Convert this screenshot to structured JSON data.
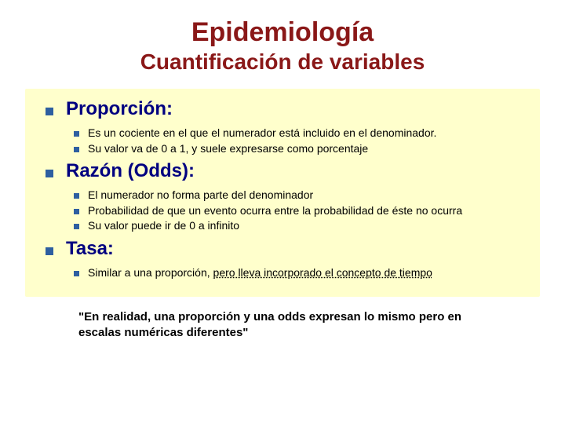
{
  "colors": {
    "title_color": "#8a1818",
    "bullet_color": "#2e5fa0",
    "heading_color": "#000080",
    "content_bg": "#ffffcc",
    "page_bg": "#ffffff",
    "body_text": "#000000"
  },
  "typography": {
    "title_size_pt": 34,
    "subtitle_size_pt": 28,
    "heading_size_pt": 24,
    "body_size_pt": 14,
    "footnote_size_pt": 15,
    "font_family": "Verdana, Tahoma, Arial, sans-serif"
  },
  "title": "Epidemiología",
  "subtitle": "Cuantificación de variables",
  "sections": [
    {
      "heading": "Proporción:",
      "subitems": [
        {
          "text": "Es un cociente en el que el numerador está incluido en el denominador."
        },
        {
          "text": "Su valor va de 0 a 1, y suele expresarse como porcentaje"
        }
      ]
    },
    {
      "heading": "Razón (Odds):",
      "subitems": [
        {
          "text": "El numerador no forma parte del denominador"
        },
        {
          "text": "Probabilidad de que un evento ocurra entre la probabilidad de éste no ocurra"
        },
        {
          "text": "Su valor puede ir de 0 a infinito"
        }
      ]
    },
    {
      "heading": "Tasa:",
      "subitems": [
        {
          "text": "Similar a una proporción, ",
          "underline_suffix": "pero lleva incorporado el concepto de tiempo"
        }
      ]
    }
  ],
  "footnote": "\"En realidad, una proporción y una odds expresan lo mismo pero en escalas numéricas diferentes\""
}
